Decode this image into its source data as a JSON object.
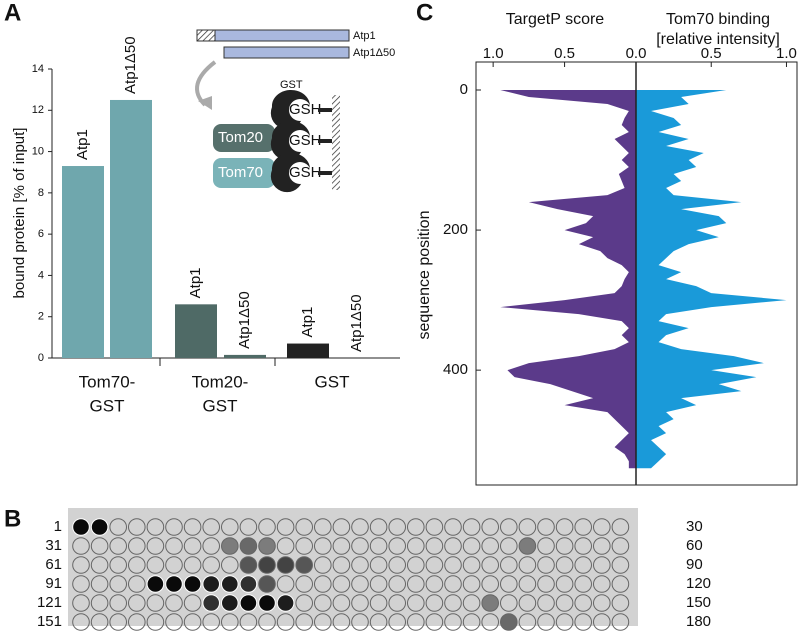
{
  "panels": [
    "A",
    "B",
    "C"
  ],
  "chart_data": [
    {
      "type": "bar",
      "ylabel": "bound protein [% of input]",
      "categories": [
        "Atp1",
        "Atp1Δ50",
        "Atp1",
        "Atp1Δ50",
        "Atp1",
        "Atp1Δ50"
      ],
      "values": [
        9.3,
        12.5,
        2.6,
        0.15,
        0.7,
        0
      ],
      "colors": [
        "#6fa7ad",
        "#6fa7ad",
        "#4f6a66",
        "#4f6a66",
        "#222222",
        "#222222"
      ],
      "groups": [
        [
          "Tom70-",
          "GST"
        ],
        [
          "Tom20-",
          "GST"
        ],
        [
          "GST"
        ]
      ],
      "ylim": [
        0,
        14
      ],
      "yticks": [
        0,
        2,
        4,
        6,
        8,
        10,
        12,
        14
      ]
    },
    {
      "type": "mirrored-area",
      "ylabel": "sequence position",
      "left_axis_label": "TargetP score",
      "right_axis_label": [
        "Tom70 binding",
        "[relative intensity]"
      ],
      "xlim": [
        1.12,
        0
      ],
      "xticks": [
        {
          "value": 1,
          "label": "1.0"
        },
        0.5
      ],
      "x2lim": [
        0,
        1.07
      ],
      "x2ticks": [
        {
          "value": 0,
          "label": "0.0"
        },
        0.5,
        {
          "value": 1,
          "label": "1.0"
        }
      ],
      "ylim": [
        -40,
        564
      ],
      "yticks": [
        0,
        200,
        400
      ],
      "x": [
        0,
        10,
        20,
        30,
        40,
        50,
        60,
        70,
        80,
        90,
        100,
        110,
        120,
        130,
        140,
        150,
        160,
        170,
        180,
        190,
        200,
        210,
        220,
        230,
        240,
        250,
        260,
        270,
        280,
        290,
        300,
        310,
        320,
        330,
        340,
        350,
        360,
        370,
        380,
        390,
        400,
        410,
        420,
        430,
        440,
        450,
        460,
        470,
        480,
        490,
        500,
        510,
        520,
        530,
        540
      ],
      "series": [
        {
          "name": "TargetP score",
          "color": "#5b3a8a",
          "axis": "x",
          "values": [
            0.95,
            0.75,
            0.2,
            0.05,
            0.08,
            0.1,
            0.05,
            0.15,
            0.1,
            0.05,
            0.1,
            0.05,
            0.12,
            0.1,
            0.08,
            0.2,
            0.75,
            0.55,
            0.3,
            0.35,
            0.5,
            0.3,
            0.4,
            0.25,
            0.2,
            0.1,
            0.05,
            0.08,
            0.1,
            0.15,
            0.5,
            0.95,
            0.4,
            0.1,
            0.05,
            0.1,
            0.05,
            0.15,
            0.4,
            0.75,
            0.9,
            0.85,
            0.6,
            0.45,
            0.3,
            0.5,
            0.2,
            0.15,
            0.1,
            0.05,
            0.1,
            0.15,
            0.08,
            0.05,
            0.05
          ]
        },
        {
          "name": "Tom70 binding",
          "color": "#1a9ad9",
          "axis": "x2",
          "values": [
            0.6,
            0.3,
            0.35,
            0.1,
            0.25,
            0.3,
            0.15,
            0.35,
            0.2,
            0.45,
            0.35,
            0.4,
            0.25,
            0.3,
            0.2,
            0.25,
            0.7,
            0.3,
            0.55,
            0.6,
            0.4,
            0.55,
            0.35,
            0.25,
            0.2,
            0.15,
            0.3,
            0.2,
            0.4,
            0.5,
            1.0,
            0.5,
            0.2,
            0.15,
            0.35,
            0.2,
            0.15,
            0.3,
            0.65,
            0.85,
            0.5,
            0.8,
            0.55,
            0.7,
            0.3,
            0.4,
            0.2,
            0.25,
            0.15,
            0.2,
            0.1,
            0.15,
            0.2,
            0.15,
            0.1
          ]
        }
      ]
    }
  ],
  "schematic": {
    "constructs": [
      "Atp1",
      "Atp1Δ50"
    ],
    "tag": "GST",
    "receptors": [
      "Tom20",
      "Tom70"
    ],
    "ligand": [
      "GSH",
      "GSH",
      "GSH"
    ]
  },
  "array": {
    "row_start": [
      1,
      31,
      61,
      91,
      121,
      151
    ],
    "row_end": [
      30,
      60,
      90,
      120,
      150,
      180
    ]
  }
}
